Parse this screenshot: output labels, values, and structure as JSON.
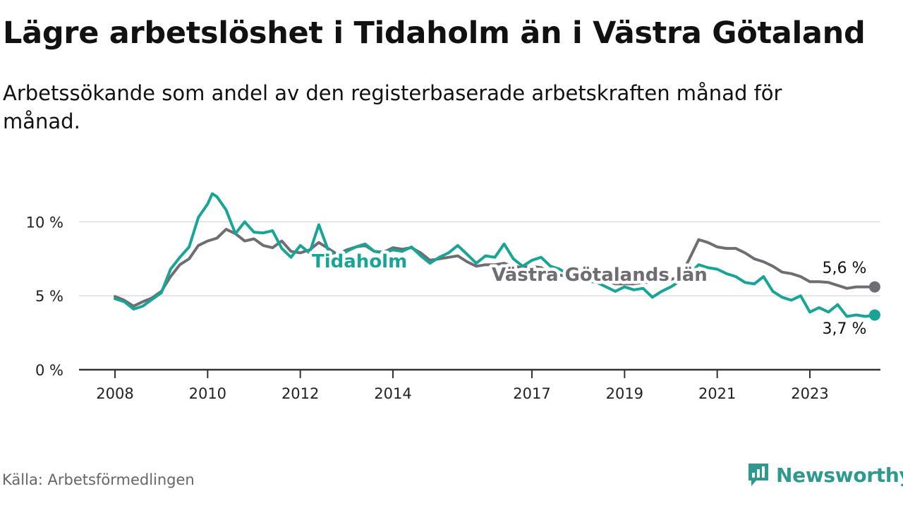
{
  "header": {
    "title": "Lägre arbetslöshet i Tidaholm än i Västra Götaland",
    "subtitle": "Arbetssökande som andel av den registerbaserade arbetskraften månad för månad."
  },
  "footer": {
    "source": "Källa: Arbetsförmedlingen",
    "brand": "Newsworthy"
  },
  "colors": {
    "tidaholm": "#16a596",
    "vastra_gotaland": "#6f6d72",
    "grid": "#dddddd",
    "axis": "#333333"
  },
  "chart_data": {
    "type": "line",
    "title": "Lägre arbetslöshet i Tidaholm än i Västra Götaland",
    "xlabel": "",
    "ylabel": "",
    "xlim": [
      2008,
      2024.8
    ],
    "ylim": [
      0,
      12.5
    ],
    "y_ticks": [
      {
        "value": 0,
        "label": "0 %"
      },
      {
        "value": 5,
        "label": "5 %"
      },
      {
        "value": 10,
        "label": "10 %"
      }
    ],
    "x_ticks": [
      {
        "value": 2008,
        "label": "2008"
      },
      {
        "value": 2010,
        "label": "2010"
      },
      {
        "value": 2012,
        "label": "2012"
      },
      {
        "value": 2014,
        "label": "2014"
      },
      {
        "value": 2017,
        "label": "2017"
      },
      {
        "value": 2019,
        "label": "2019"
      },
      {
        "value": 2021,
        "label": "2021"
      },
      {
        "value": 2023,
        "label": "2023"
      }
    ],
    "grid": true,
    "series": [
      {
        "name": "Västra Götalands län",
        "label": "Västra Götalands län",
        "end_label": "5,6 %",
        "color_key": "vastra_gotaland",
        "points": [
          [
            2008.0,
            4.95
          ],
          [
            2008.2,
            4.7
          ],
          [
            2008.4,
            4.3
          ],
          [
            2008.6,
            4.6
          ],
          [
            2008.8,
            4.85
          ],
          [
            2009.0,
            5.3
          ],
          [
            2009.2,
            6.3
          ],
          [
            2009.4,
            7.1
          ],
          [
            2009.6,
            7.5
          ],
          [
            2009.8,
            8.4
          ],
          [
            2010.0,
            8.7
          ],
          [
            2010.2,
            8.9
          ],
          [
            2010.4,
            9.5
          ],
          [
            2010.6,
            9.2
          ],
          [
            2010.8,
            8.7
          ],
          [
            2011.0,
            8.85
          ],
          [
            2011.2,
            8.4
          ],
          [
            2011.4,
            8.25
          ],
          [
            2011.6,
            8.7
          ],
          [
            2011.8,
            8.0
          ],
          [
            2012.0,
            7.9
          ],
          [
            2012.2,
            8.1
          ],
          [
            2012.4,
            8.6
          ],
          [
            2012.6,
            8.2
          ],
          [
            2012.8,
            7.8
          ],
          [
            2013.0,
            8.1
          ],
          [
            2013.2,
            8.3
          ],
          [
            2013.4,
            8.4
          ],
          [
            2013.6,
            8.0
          ],
          [
            2013.8,
            7.95
          ],
          [
            2014.0,
            8.25
          ],
          [
            2014.2,
            8.15
          ],
          [
            2014.4,
            8.25
          ],
          [
            2014.6,
            7.9
          ],
          [
            2014.8,
            7.4
          ],
          [
            2015.0,
            7.5
          ],
          [
            2015.2,
            7.6
          ],
          [
            2015.4,
            7.7
          ],
          [
            2015.6,
            7.3
          ],
          [
            2015.8,
            7.0
          ],
          [
            2016.0,
            7.1
          ],
          [
            2016.2,
            7.1
          ],
          [
            2016.4,
            7.2
          ],
          [
            2016.6,
            7.0
          ],
          [
            2016.8,
            6.9
          ],
          [
            2017.0,
            7.0
          ],
          [
            2017.2,
            6.9
          ],
          [
            2017.4,
            6.6
          ],
          [
            2017.6,
            6.4
          ],
          [
            2017.8,
            6.3
          ],
          [
            2018.0,
            6.25
          ],
          [
            2018.2,
            6.2
          ],
          [
            2018.4,
            6.1
          ],
          [
            2018.6,
            6.0
          ],
          [
            2018.8,
            5.8
          ],
          [
            2019.0,
            5.8
          ],
          [
            2019.2,
            5.8
          ],
          [
            2019.4,
            5.9
          ],
          [
            2019.6,
            5.9
          ],
          [
            2019.8,
            6.0
          ],
          [
            2020.0,
            6.1
          ],
          [
            2020.2,
            6.3
          ],
          [
            2020.4,
            7.5
          ],
          [
            2020.6,
            8.8
          ],
          [
            2020.8,
            8.6
          ],
          [
            2021.0,
            8.3
          ],
          [
            2021.2,
            8.2
          ],
          [
            2021.4,
            8.2
          ],
          [
            2021.6,
            7.9
          ],
          [
            2021.8,
            7.5
          ],
          [
            2022.0,
            7.3
          ],
          [
            2022.2,
            7.0
          ],
          [
            2022.4,
            6.6
          ],
          [
            2022.6,
            6.5
          ],
          [
            2022.8,
            6.3
          ],
          [
            2023.0,
            5.95
          ],
          [
            2023.2,
            5.95
          ],
          [
            2023.4,
            5.9
          ],
          [
            2023.6,
            5.7
          ],
          [
            2023.8,
            5.5
          ],
          [
            2024.0,
            5.6
          ],
          [
            2024.2,
            5.6
          ],
          [
            2024.4,
            5.6
          ]
        ]
      },
      {
        "name": "Tidaholm",
        "label": "Tidaholm",
        "end_label": "3,7 %",
        "color_key": "tidaholm",
        "points": [
          [
            2008.0,
            4.8
          ],
          [
            2008.2,
            4.6
          ],
          [
            2008.4,
            4.1
          ],
          [
            2008.6,
            4.3
          ],
          [
            2008.8,
            4.75
          ],
          [
            2009.0,
            5.2
          ],
          [
            2009.2,
            6.8
          ],
          [
            2009.4,
            7.6
          ],
          [
            2009.6,
            8.3
          ],
          [
            2009.8,
            10.3
          ],
          [
            2010.0,
            11.2
          ],
          [
            2010.1,
            11.9
          ],
          [
            2010.2,
            11.7
          ],
          [
            2010.4,
            10.8
          ],
          [
            2010.6,
            9.2
          ],
          [
            2010.8,
            10.0
          ],
          [
            2011.0,
            9.3
          ],
          [
            2011.2,
            9.25
          ],
          [
            2011.4,
            9.4
          ],
          [
            2011.6,
            8.2
          ],
          [
            2011.8,
            7.6
          ],
          [
            2012.0,
            8.4
          ],
          [
            2012.2,
            7.9
          ],
          [
            2012.4,
            9.8
          ],
          [
            2012.6,
            8.1
          ],
          [
            2012.8,
            7.6
          ],
          [
            2013.0,
            8.0
          ],
          [
            2013.2,
            8.3
          ],
          [
            2013.4,
            8.5
          ],
          [
            2013.6,
            8.0
          ],
          [
            2013.8,
            7.9
          ],
          [
            2014.0,
            8.1
          ],
          [
            2014.2,
            8.0
          ],
          [
            2014.4,
            8.3
          ],
          [
            2014.6,
            7.7
          ],
          [
            2014.8,
            7.2
          ],
          [
            2015.0,
            7.6
          ],
          [
            2015.2,
            7.9
          ],
          [
            2015.4,
            8.4
          ],
          [
            2015.6,
            7.8
          ],
          [
            2015.8,
            7.2
          ],
          [
            2016.0,
            7.7
          ],
          [
            2016.2,
            7.6
          ],
          [
            2016.4,
            8.5
          ],
          [
            2016.6,
            7.5
          ],
          [
            2016.8,
            7.0
          ],
          [
            2017.0,
            7.4
          ],
          [
            2017.2,
            7.6
          ],
          [
            2017.4,
            7.0
          ],
          [
            2017.6,
            6.8
          ],
          [
            2017.8,
            6.4
          ],
          [
            2018.0,
            6.2
          ],
          [
            2018.2,
            6.0
          ],
          [
            2018.4,
            5.9
          ],
          [
            2018.6,
            5.6
          ],
          [
            2018.8,
            5.3
          ],
          [
            2019.0,
            5.6
          ],
          [
            2019.2,
            5.4
          ],
          [
            2019.4,
            5.5
          ],
          [
            2019.6,
            4.9
          ],
          [
            2019.8,
            5.3
          ],
          [
            2020.0,
            5.6
          ],
          [
            2020.2,
            6.0
          ],
          [
            2020.4,
            6.5
          ],
          [
            2020.6,
            7.1
          ],
          [
            2020.8,
            6.9
          ],
          [
            2021.0,
            6.8
          ],
          [
            2021.2,
            6.5
          ],
          [
            2021.4,
            6.3
          ],
          [
            2021.6,
            5.9
          ],
          [
            2021.8,
            5.8
          ],
          [
            2022.0,
            6.3
          ],
          [
            2022.2,
            5.3
          ],
          [
            2022.4,
            4.9
          ],
          [
            2022.6,
            4.7
          ],
          [
            2022.8,
            5.0
          ],
          [
            2023.0,
            3.9
          ],
          [
            2023.2,
            4.2
          ],
          [
            2023.4,
            3.9
          ],
          [
            2023.6,
            4.4
          ],
          [
            2023.8,
            3.6
          ],
          [
            2024.0,
            3.7
          ],
          [
            2024.2,
            3.6
          ],
          [
            2024.4,
            3.7
          ]
        ]
      }
    ]
  }
}
